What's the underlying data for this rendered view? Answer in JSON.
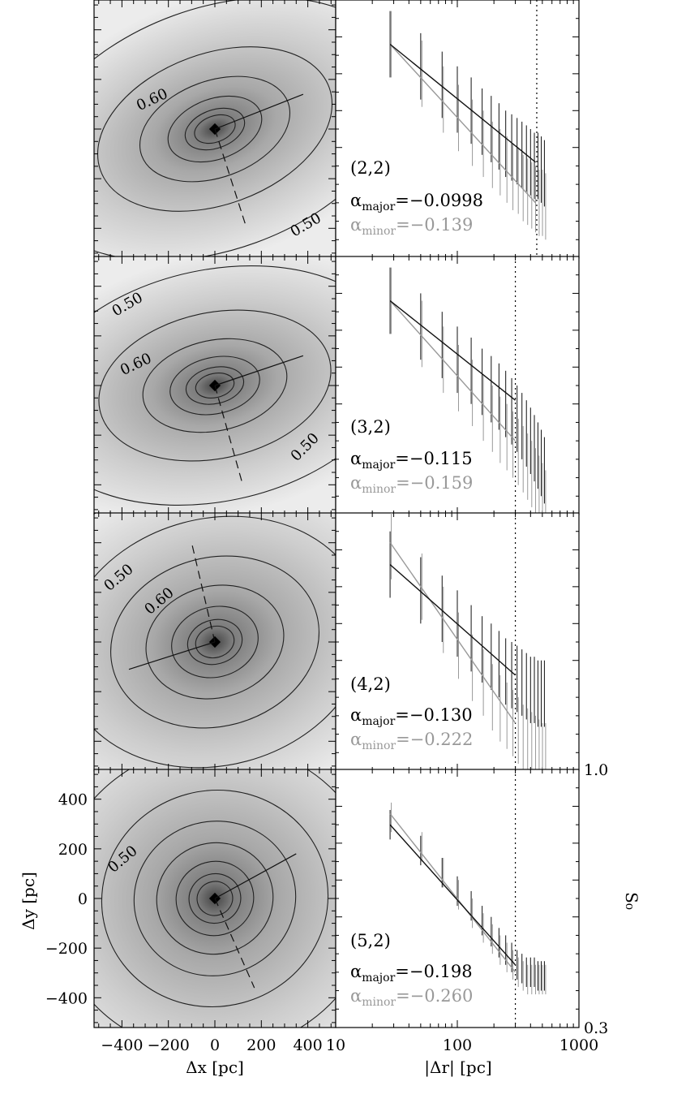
{
  "figure": {
    "left_xlabel": "Δx [pc]",
    "left_ylabel": "Δy [pc]",
    "right_xlabel": "|Δr| [pc]",
    "right_ylabel": "S₀"
  },
  "chart_data": [
    {
      "type": "heatmap",
      "panel": "(2,2)",
      "xlim": [
        -520,
        520
      ],
      "ylim": [
        -520,
        520
      ],
      "contour_labels": [
        "0.60",
        "0.50"
      ],
      "major_axis": {
        "from": [
          0,
          0
        ],
        "to": [
          380,
          140
        ]
      },
      "minor_axis": {
        "from": [
          0,
          0
        ],
        "to": [
          130,
          -380
        ]
      }
    },
    {
      "type": "line",
      "panel": "(2,2)",
      "xscale": "log",
      "xlim": [
        10,
        1000
      ],
      "vline_x": 450,
      "major_fit": {
        "x": [
          28,
          440
        ],
        "y": [
          0.88,
          0.56
        ]
      },
      "minor_fit": {
        "x": [
          28,
          440
        ],
        "y": [
          0.88,
          0.45
        ]
      },
      "errorbars": {
        "x": [
          28,
          50,
          75,
          100,
          130,
          160,
          190,
          220,
          250,
          280,
          310,
          340,
          370,
          400,
          430,
          460,
          490,
          520
        ],
        "major_y": [
          0.88,
          0.82,
          0.77,
          0.73,
          0.7,
          0.67,
          0.65,
          0.63,
          0.61,
          0.6,
          0.59,
          0.58,
          0.57,
          0.56,
          0.55,
          0.55,
          0.54,
          0.53
        ],
        "minor_y": [
          0.88,
          0.8,
          0.73,
          0.68,
          0.64,
          0.61,
          0.58,
          0.56,
          0.54,
          0.52,
          0.51,
          0.49,
          0.48,
          0.47,
          0.46,
          0.45,
          0.45,
          0.44
        ],
        "half_err": 0.09
      },
      "annotation": "(2,2)",
      "alpha_major": "−0.0998",
      "alpha_minor": "−0.139"
    },
    {
      "type": "heatmap",
      "panel": "(3,2)",
      "xlim": [
        -520,
        520
      ],
      "ylim": [
        -520,
        520
      ],
      "contour_labels": [
        "0.50",
        "0.60",
        "0.50"
      ],
      "major_axis": {
        "from": [
          0,
          0
        ],
        "to": [
          380,
          120
        ]
      },
      "minor_axis": {
        "from": [
          0,
          0
        ],
        "to": [
          120,
          -400
        ]
      }
    },
    {
      "type": "line",
      "panel": "(3,2)",
      "xscale": "log",
      "xlim": [
        10,
        1000
      ],
      "vline_x": 300,
      "major_fit": {
        "x": [
          28,
          300
        ],
        "y": [
          0.88,
          0.61
        ]
      },
      "minor_fit": {
        "x": [
          28,
          300
        ],
        "y": [
          0.88,
          0.5
        ]
      },
      "errorbars": {
        "x": [
          28,
          50,
          75,
          100,
          130,
          160,
          190,
          220,
          250,
          280,
          310,
          340,
          370,
          400,
          430,
          460,
          490,
          520
        ],
        "major_y": [
          0.88,
          0.81,
          0.76,
          0.72,
          0.69,
          0.66,
          0.64,
          0.62,
          0.6,
          0.58,
          0.56,
          0.54,
          0.52,
          0.5,
          0.48,
          0.46,
          0.44,
          0.42
        ],
        "minor_y": [
          0.88,
          0.79,
          0.72,
          0.67,
          0.63,
          0.59,
          0.56,
          0.53,
          0.51,
          0.49,
          0.47,
          0.45,
          0.43,
          0.41,
          0.39,
          0.37,
          0.35,
          0.33
        ],
        "half_err": 0.09
      },
      "annotation": "(3,2)",
      "alpha_major": "−0.115",
      "alpha_minor": "−0.159"
    },
    {
      "type": "heatmap",
      "panel": "(4,2)",
      "xlim": [
        -520,
        520
      ],
      "ylim": [
        -520,
        520
      ],
      "contour_labels": [
        "0.50",
        "0.60"
      ],
      "major_axis": {
        "from": [
          0,
          0
        ],
        "to": [
          -370,
          -110
        ]
      },
      "minor_axis": {
        "from": [
          0,
          0
        ],
        "to": [
          -100,
          400
        ]
      }
    },
    {
      "type": "line",
      "panel": "(4,2)",
      "xscale": "log",
      "xlim": [
        10,
        1000
      ],
      "vline_x": 300,
      "major_fit": {
        "x": [
          28,
          300
        ],
        "y": [
          0.86,
          0.56
        ]
      },
      "minor_fit": {
        "x": [
          28,
          300
        ],
        "y": [
          0.92,
          0.43
        ]
      },
      "errorbars": {
        "x": [
          28,
          50,
          75,
          100,
          130,
          160,
          190,
          220,
          250,
          280,
          310,
          340,
          370,
          400,
          430,
          460,
          490,
          520
        ],
        "major_y": [
          0.86,
          0.79,
          0.74,
          0.7,
          0.66,
          0.63,
          0.61,
          0.59,
          0.57,
          0.56,
          0.55,
          0.54,
          0.53,
          0.52,
          0.52,
          0.51,
          0.51,
          0.51
        ],
        "minor_y": [
          0.91,
          0.8,
          0.71,
          0.64,
          0.58,
          0.54,
          0.5,
          0.47,
          0.45,
          0.43,
          0.41,
          0.39,
          0.38,
          0.37,
          0.36,
          0.35,
          0.34,
          0.34
        ],
        "half_err": 0.09
      },
      "annotation": "(4,2)",
      "alpha_major": "−0.130",
      "alpha_minor": "−0.222"
    },
    {
      "type": "heatmap",
      "panel": "(5,2)",
      "xlim": [
        -520,
        520
      ],
      "ylim": [
        -520,
        520
      ],
      "xticks": [
        -400,
        -200,
        0,
        200,
        400
      ],
      "yticks": [
        -400,
        -200,
        0,
        200,
        400
      ],
      "contour_labels": [
        "0.50"
      ],
      "major_axis": {
        "from": [
          0,
          0
        ],
        "to": [
          350,
          180
        ]
      },
      "minor_axis": {
        "from": [
          0,
          0
        ],
        "to": [
          170,
          -360
        ]
      }
    },
    {
      "type": "line",
      "panel": "(5,2)",
      "xscale": "log",
      "xlim": [
        10,
        1000
      ],
      "xticks": [
        10,
        100,
        1000
      ],
      "ylim": [
        0.3,
        1.0
      ],
      "yticks": [
        0.3,
        1.0
      ],
      "vline_x": 300,
      "major_fit": {
        "x": [
          28,
          300
        ],
        "y": [
          0.85,
          0.47
        ]
      },
      "minor_fit": {
        "x": [
          28,
          300
        ],
        "y": [
          0.88,
          0.45
        ]
      },
      "errorbars": {
        "x": [
          28,
          50,
          75,
          100,
          130,
          160,
          190,
          220,
          250,
          280,
          310,
          340,
          370,
          400,
          430,
          460,
          490,
          520
        ],
        "major_y": [
          0.85,
          0.78,
          0.72,
          0.67,
          0.63,
          0.59,
          0.56,
          0.53,
          0.51,
          0.49,
          0.47,
          0.46,
          0.45,
          0.45,
          0.45,
          0.44,
          0.44,
          0.44
        ],
        "minor_y": [
          0.87,
          0.79,
          0.72,
          0.66,
          0.61,
          0.57,
          0.54,
          0.51,
          0.49,
          0.47,
          0.45,
          0.44,
          0.43,
          0.43,
          0.43,
          0.43,
          0.43,
          0.43
        ],
        "half_err": 0.04
      },
      "annotation": "(5,2)",
      "alpha_major": "−0.198",
      "alpha_minor": "−0.260"
    }
  ]
}
